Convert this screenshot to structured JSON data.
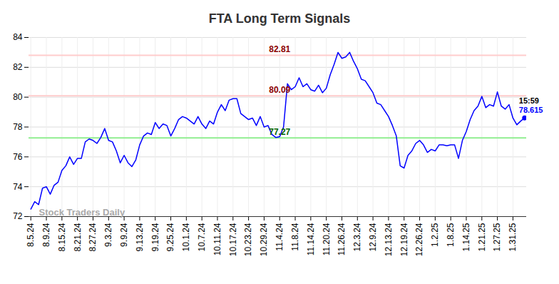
{
  "chart_data": {
    "type": "line",
    "title": "FTA Long Term Signals",
    "categories": [
      "8.5.24",
      null,
      null,
      null,
      "8.9.24",
      null,
      null,
      null,
      "8.15.24",
      null,
      null,
      null,
      "8.21.24",
      null,
      null,
      null,
      "8.27.24",
      null,
      null,
      null,
      "9.3.24",
      null,
      null,
      null,
      "9.9.24",
      null,
      null,
      null,
      "9.13.24",
      null,
      null,
      null,
      "9.19.24",
      null,
      null,
      null,
      "9.25.24",
      null,
      null,
      null,
      "10.1.24",
      null,
      null,
      null,
      "10.7.24",
      null,
      null,
      null,
      "10.11.24",
      null,
      null,
      null,
      "10.17.24",
      null,
      null,
      null,
      "10.23.24",
      null,
      null,
      null,
      "10.29.24",
      null,
      null,
      null,
      "11.4.24",
      null,
      null,
      null,
      "11.8.24",
      null,
      null,
      null,
      "11.14.24",
      null,
      null,
      null,
      "11.20.24",
      null,
      null,
      null,
      "11.26.24",
      null,
      null,
      null,
      "12.3.24",
      null,
      null,
      null,
      "12.9.24",
      null,
      null,
      null,
      "12.13.24",
      null,
      null,
      null,
      "12.19.24",
      null,
      null,
      null,
      "12.26.24",
      null,
      null,
      null,
      "1.2.25",
      null,
      null,
      null,
      "1.8.25",
      null,
      null,
      null,
      "1.14.25",
      null,
      null,
      null,
      "1.21.25",
      null,
      null,
      null,
      "1.27.25",
      null,
      null,
      null,
      "1.31.25",
      null,
      null,
      null
    ],
    "values": [
      72.5,
      73.0,
      72.8,
      73.9,
      74.0,
      73.5,
      74.1,
      74.3,
      75.1,
      75.4,
      76.0,
      75.5,
      75.9,
      75.9,
      77.0,
      77.2,
      77.1,
      76.9,
      77.3,
      77.9,
      77.1,
      77.0,
      76.4,
      75.6,
      76.1,
      75.6,
      75.35,
      75.8,
      76.8,
      77.4,
      77.6,
      77.5,
      78.3,
      77.9,
      78.2,
      78.1,
      77.4,
      77.9,
      78.5,
      78.7,
      78.6,
      78.4,
      78.2,
      78.7,
      78.2,
      77.9,
      78.4,
      78.2,
      79.0,
      79.5,
      79.1,
      79.8,
      79.9,
      79.9,
      78.9,
      78.7,
      78.5,
      78.6,
      78.1,
      78.7,
      78.0,
      78.1,
      77.5,
      77.3,
      77.35,
      78.0,
      80.9,
      80.5,
      80.7,
      81.3,
      80.7,
      80.9,
      80.5,
      80.4,
      80.8,
      80.3,
      80.6,
      81.5,
      82.2,
      83.0,
      82.6,
      82.7,
      83.0,
      82.4,
      81.9,
      81.2,
      81.1,
      80.7,
      80.3,
      79.6,
      79.5,
      79.1,
      78.7,
      78.1,
      77.4,
      75.4,
      75.25,
      76.1,
      76.4,
      76.9,
      77.1,
      76.8,
      76.3,
      76.5,
      76.4,
      76.8,
      76.8,
      76.75,
      76.8,
      76.8,
      75.9,
      77.1,
      77.7,
      78.5,
      79.1,
      79.4,
      80.05,
      79.3,
      79.5,
      79.4,
      80.35,
      79.4,
      79.2,
      79.5,
      78.6,
      78.15,
      78.4,
      78.615
    ],
    "color": "#0000ff",
    "ylim": [
      72,
      84
    ],
    "yticks": [
      72,
      74,
      76,
      78,
      80,
      82,
      84
    ],
    "grid": true,
    "reference_lines": [
      {
        "value": 82.81,
        "label": "82.81",
        "color": "#ffcccc",
        "label_color": "#8b0000"
      },
      {
        "value": 80.09,
        "label": "80.09",
        "color": "#ffcccc",
        "label_color": "#8b0000"
      },
      {
        "value": 77.27,
        "label": "77.27",
        "color": "#90ee90",
        "label_color": "#006400"
      }
    ],
    "end_annotation": {
      "time": "15:59",
      "value": 78.615
    },
    "watermark": "Stock Traders Daily"
  }
}
